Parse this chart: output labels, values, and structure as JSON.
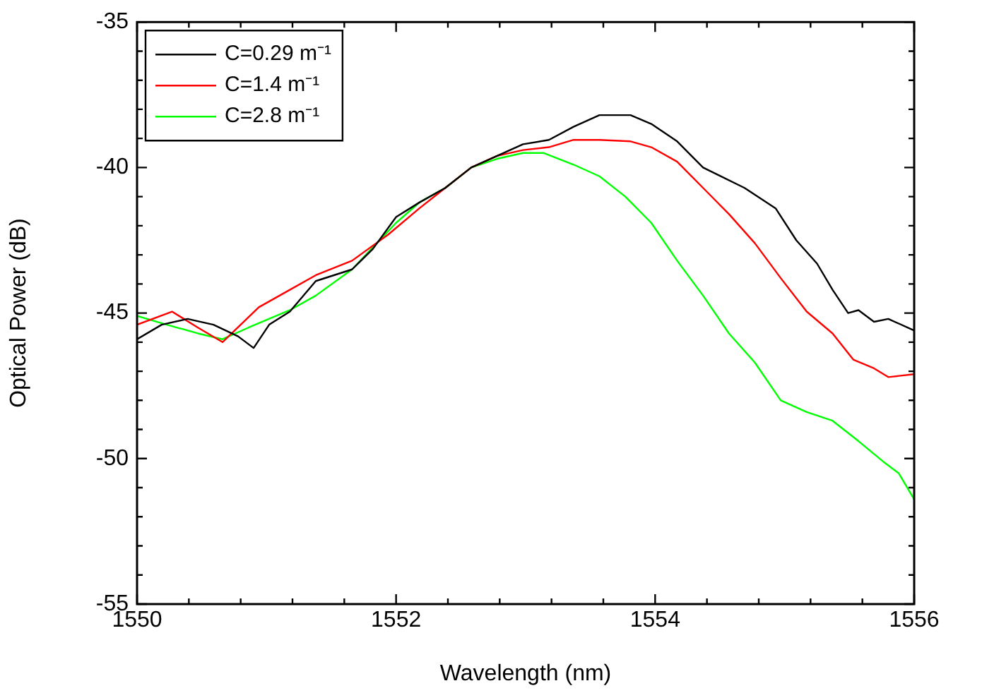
{
  "chart_data": {
    "type": "line",
    "xlabel": "Wavelength (nm)",
    "ylabel": "Optical Power (dB)",
    "xlim": [
      1550,
      1556
    ],
    "ylim": [
      -55,
      -35
    ],
    "xticks": [
      1550,
      {
        "value": 1550.4,
        "label": null
      },
      {
        "value": 1550.8,
        "label": null
      },
      {
        "value": 1551.2,
        "label": null
      },
      {
        "value": 1551.6,
        "label": null
      },
      1552,
      {
        "value": 1552.4,
        "label": null
      },
      {
        "value": 1552.8,
        "label": null
      },
      {
        "value": 1553.2,
        "label": null
      },
      {
        "value": 1553.6,
        "label": null
      },
      1554,
      {
        "value": 1554.4,
        "label": null
      },
      {
        "value": 1554.8,
        "label": null
      },
      {
        "value": 1555.2,
        "label": null
      },
      {
        "value": 1555.6,
        "label": null
      },
      1556
    ],
    "yticks": [
      -55,
      {
        "value": -54,
        "label": null
      },
      {
        "value": -53,
        "label": null
      },
      {
        "value": -52,
        "label": null
      },
      {
        "value": -51,
        "label": null
      },
      -50,
      {
        "value": -49,
        "label": null
      },
      {
        "value": -48,
        "label": null
      },
      {
        "value": -47,
        "label": null
      },
      {
        "value": -46,
        "label": null
      },
      -45,
      {
        "value": -44,
        "label": null
      },
      {
        "value": -43,
        "label": null
      },
      {
        "value": -42,
        "label": null
      },
      {
        "value": -41,
        "label": null
      },
      -40,
      {
        "value": -39,
        "label": null
      },
      {
        "value": -38,
        "label": null
      },
      {
        "value": -37,
        "label": null
      },
      {
        "value": -36,
        "label": null
      },
      -35
    ],
    "legend": "top left",
    "marker": "none",
    "line_style": "solid",
    "series": [
      {
        "name": "C=0.29 m⁻¹",
        "color": "#000000",
        "x": [
          1550.0,
          1550.19,
          1550.39,
          1550.59,
          1550.78,
          1550.9,
          1551.02,
          1551.18,
          1551.38,
          1551.66,
          1551.82,
          1552.0,
          1552.18,
          1552.38,
          1552.58,
          1552.78,
          1552.98,
          1553.18,
          1553.37,
          1553.57,
          1553.81,
          1553.97,
          1554.17,
          1554.37,
          1554.69,
          1554.93,
          1555.09,
          1555.25,
          1555.37,
          1555.49,
          1555.57,
          1555.69,
          1555.8,
          1556.0
        ],
        "values": [
          -45.9,
          -45.4,
          -45.2,
          -45.4,
          -45.8,
          -46.2,
          -45.4,
          -44.95,
          -43.9,
          -43.5,
          -42.8,
          -41.7,
          -41.2,
          -40.7,
          -40.0,
          -39.6,
          -39.2,
          -39.05,
          -38.6,
          -38.2,
          -38.2,
          -38.5,
          -39.1,
          -40.0,
          -40.7,
          -41.4,
          -42.5,
          -43.3,
          -44.2,
          -45.0,
          -44.9,
          -45.3,
          -45.2,
          -45.6
        ]
      },
      {
        "name": "C=1.4 m⁻¹",
        "color": "#ff0000",
        "x": [
          1550.0,
          1550.27,
          1550.47,
          1550.66,
          1550.94,
          1551.18,
          1551.38,
          1551.66,
          1551.94,
          1552.18,
          1552.38,
          1552.58,
          1552.78,
          1552.98,
          1553.18,
          1553.37,
          1553.57,
          1553.81,
          1553.97,
          1554.17,
          1554.37,
          1554.57,
          1554.77,
          1554.97,
          1555.17,
          1555.37,
          1555.53,
          1555.69,
          1555.8,
          1556.0
        ],
        "values": [
          -45.4,
          -44.95,
          -45.5,
          -46.0,
          -44.8,
          -44.2,
          -43.7,
          -43.2,
          -42.3,
          -41.4,
          -40.7,
          -40.0,
          -39.6,
          -39.4,
          -39.3,
          -39.05,
          -39.05,
          -39.1,
          -39.3,
          -39.8,
          -40.7,
          -41.6,
          -42.6,
          -43.8,
          -44.95,
          -45.7,
          -46.6,
          -46.9,
          -47.2,
          -47.1
        ]
      },
      {
        "name": "C=2.8 m⁻¹",
        "color": "#00ff00",
        "x": [
          1550.0,
          1550.23,
          1550.47,
          1550.66,
          1550.86,
          1551.18,
          1551.38,
          1551.66,
          1552.0,
          1552.18,
          1552.38,
          1552.58,
          1552.78,
          1552.98,
          1553.14,
          1553.37,
          1553.57,
          1553.77,
          1553.97,
          1554.17,
          1554.37,
          1554.57,
          1554.77,
          1554.97,
          1555.17,
          1555.37,
          1555.57,
          1555.76,
          1555.88,
          1556.0
        ],
        "values": [
          -45.1,
          -45.4,
          -45.7,
          -45.9,
          -45.5,
          -44.9,
          -44.4,
          -43.5,
          -41.9,
          -41.2,
          -40.7,
          -40.0,
          -39.7,
          -39.5,
          -39.5,
          -39.9,
          -40.3,
          -41.0,
          -41.9,
          -43.2,
          -44.4,
          -45.7,
          -46.7,
          -48.0,
          -48.4,
          -48.7,
          -49.4,
          -50.1,
          -50.5,
          -51.4
        ]
      }
    ]
  }
}
